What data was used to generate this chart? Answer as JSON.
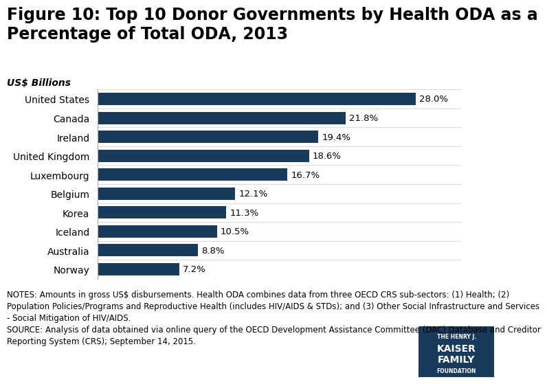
{
  "title": "Figure 10: Top 10 Donor Governments by Health ODA as a\nPercentage of Total ODA, 2013",
  "subtitle": "US$ Billions",
  "countries": [
    "Norway",
    "Australia",
    "Iceland",
    "Korea",
    "Belgium",
    "Luxembourg",
    "United Kingdom",
    "Ireland",
    "Canada",
    "United States"
  ],
  "values": [
    7.2,
    8.8,
    10.5,
    11.3,
    12.1,
    16.7,
    18.6,
    19.4,
    21.8,
    28.0
  ],
  "labels": [
    "7.2%",
    "8.8%",
    "10.5%",
    "11.3%",
    "12.1%",
    "16.7%",
    "18.6%",
    "19.4%",
    "21.8%",
    "28.0%"
  ],
  "bar_color": "#1a3a5c",
  "background_color": "#ffffff",
  "notes_line1": "NOTES: Amounts in gross US$ disbursements. Health ODA combines data from three OECD CRS sub-sectors: (1) Health; (2)",
  "notes_line2": "Population Policies/Programs and Reproductive Health (includes HIV/AIDS & STDs); and (3) Other Social Infrastructure and Services",
  "notes_line3": "- Social Mitigation of HIV/AIDS.",
  "notes_line4": "SOURCE: Analysis of data obtained via online query of the OECD Development Assistance Committee (DAC) Database and Creditor",
  "notes_line5": "Reporting System (CRS); September 14, 2015.",
  "xlim": [
    0,
    32
  ],
  "title_fontsize": 17,
  "subtitle_fontsize": 10,
  "label_fontsize": 9.5,
  "tick_fontsize": 10,
  "notes_fontsize": 8.5,
  "logo_text1": "THE HENRY J.",
  "logo_text2": "KAISER",
  "logo_text3": "FAMILY",
  "logo_text4": "FOUNDATION",
  "logo_color": "#1a3a5c"
}
